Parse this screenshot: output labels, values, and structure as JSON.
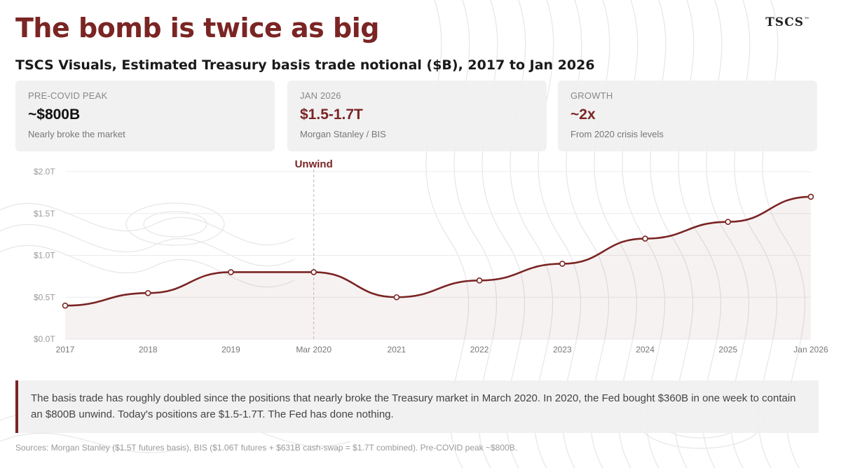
{
  "brand": {
    "name": "TSCS",
    "mark": "™"
  },
  "title": "The bomb is twice as big",
  "subtitle": "TSCS Visuals, Estimated Treasury basis trade notional ($B), 2017 to Jan 2026",
  "kpis": [
    {
      "label": "PRE-COVID PEAK",
      "value": "~$800B",
      "note": "Nearly broke the market",
      "color": "#111111"
    },
    {
      "label": "JAN 2026",
      "value": "$1.5-1.7T",
      "note": "Morgan Stanley / BIS",
      "color": "#7a2524"
    },
    {
      "label": "GROWTH",
      "value": "~2x",
      "note": "From 2020 crisis levels",
      "color": "#7a2524"
    }
  ],
  "chart_data": {
    "type": "line",
    "title": "Estimated Treasury basis trade notional ($B)",
    "categories": [
      "2017",
      "2018",
      "2019",
      "Mar 2020",
      "2021",
      "2022",
      "2023",
      "2024",
      "2025",
      "Jan 2026"
    ],
    "series": [
      {
        "name": "Basis trade notional",
        "values": [
          0.4,
          0.55,
          0.8,
          0.8,
          0.5,
          0.7,
          0.9,
          1.2,
          1.4,
          1.7
        ],
        "color": "#7a2524"
      }
    ],
    "yticks": [
      0.0,
      0.5,
      1.0,
      1.5,
      2.0
    ],
    "ytick_labels": [
      "$0.0T",
      "$0.5T",
      "$1.0T",
      "$1.5T",
      "$2.0T"
    ],
    "ylim": [
      0,
      2.0
    ],
    "xlabel": "",
    "ylabel": "",
    "grid": true,
    "annotation": {
      "label": "Unwind",
      "category": "Mar 2020"
    }
  },
  "note": "The basis trade has roughly doubled since the positions that nearly broke the Treasury market in March 2020. In 2020, the Fed bought $360B in one week to contain an $800B unwind. Today's positions are $1.5-1.7T. The Fed has done nothing.",
  "sources": "Sources: Morgan Stanley ($1.5T futures basis), BIS ($1.06T futures + $631B cash-swap = $1.7T combined). Pre-COVID peak ~$800B."
}
